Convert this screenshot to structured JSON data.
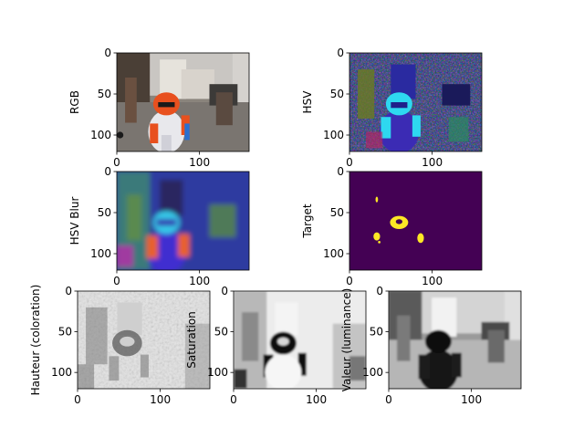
{
  "chart_data": [
    {
      "type": "image",
      "ylabel": "RGB",
      "content": "rgb-photo",
      "xticks": [
        "0",
        "100"
      ],
      "yticks": [
        "0",
        "50",
        "100"
      ],
      "xlim": [
        0,
        160
      ],
      "ylim": [
        120,
        0
      ]
    },
    {
      "type": "image",
      "ylabel": "HSV",
      "content": "hsv-false-color",
      "xticks": [
        "0",
        "100"
      ],
      "yticks": [
        "0",
        "50",
        "100"
      ],
      "xlim": [
        0,
        160
      ],
      "ylim": [
        120,
        0
      ]
    },
    {
      "type": "image",
      "ylabel": "HSV Blur",
      "content": "hsv-blurred",
      "xticks": [
        "0",
        "100"
      ],
      "yticks": [
        "0",
        "50",
        "100"
      ],
      "xlim": [
        0,
        160
      ],
      "ylim": [
        120,
        0
      ]
    },
    {
      "type": "image",
      "ylabel": "Target",
      "content": "binary-mask-viridis",
      "xticks": [
        "0",
        "100"
      ],
      "yticks": [
        "0",
        "50",
        "100"
      ],
      "xlim": [
        0,
        160
      ],
      "ylim": [
        120,
        0
      ]
    },
    {
      "type": "image",
      "ylabel": "Hauteur (coloration)",
      "content": "hue-channel-gray",
      "xticks": [
        "0",
        "100"
      ],
      "yticks": [
        "0",
        "50",
        "100"
      ],
      "xlim": [
        0,
        160
      ],
      "ylim": [
        120,
        0
      ]
    },
    {
      "type": "image",
      "ylabel": "Saturation",
      "content": "saturation-channel-gray",
      "xticks": [
        "0",
        "100"
      ],
      "yticks": [
        "0",
        "50",
        "100"
      ],
      "xlim": [
        0,
        160
      ],
      "ylim": [
        120,
        0
      ]
    },
    {
      "type": "image",
      "ylabel": "Valeur (luminance)",
      "content": "value-channel-gray",
      "xticks": [
        "0",
        "100"
      ],
      "yticks": [
        "0",
        "50",
        "100"
      ],
      "xlim": [
        0,
        160
      ],
      "ylim": [
        120,
        0
      ]
    }
  ],
  "colors": {
    "viridis_low": "#440154",
    "viridis_high": "#fde725",
    "robot_orange": "#e8501e",
    "hsv_magenta": "#4b3c9e",
    "hsv_cyan": "#2ed8f0"
  }
}
